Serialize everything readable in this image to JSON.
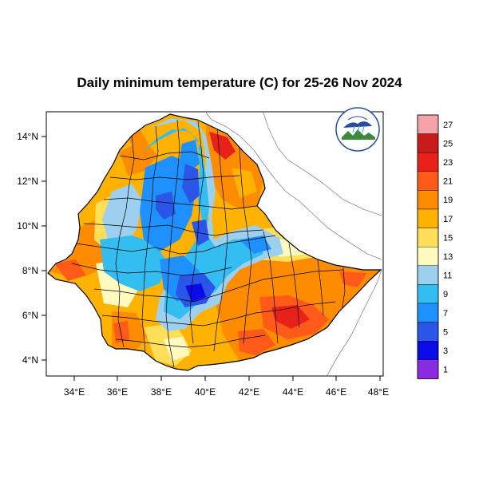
{
  "title": "Daily minimum temperature (C) for 25-26 Nov 2024",
  "axes": {
    "x_ticks": [
      "34°E",
      "36°E",
      "38°E",
      "40°E",
      "42°E",
      "44°E",
      "46°E",
      "48°E"
    ],
    "y_ticks": [
      "14°N",
      "12°N",
      "10°N",
      "8°N",
      "6°N",
      "4°N"
    ]
  },
  "legend": {
    "labels": [
      "27",
      "25",
      "23",
      "21",
      "19",
      "17",
      "15",
      "13",
      "11",
      "9",
      "7",
      "5",
      "3",
      "1"
    ],
    "colors": [
      "#f5a3a8",
      "#c81b1b",
      "#e8221b",
      "#ff5a1a",
      "#ff8c00",
      "#ffb300",
      "#ffdf5a",
      "#fffac0",
      "#9dd0ee",
      "#33bdf0",
      "#1e90ff",
      "#2b55e6",
      "#0b0be8",
      "#8a2be2"
    ]
  },
  "logo": {
    "name": "Ethiopian Meteorology Institute"
  }
}
